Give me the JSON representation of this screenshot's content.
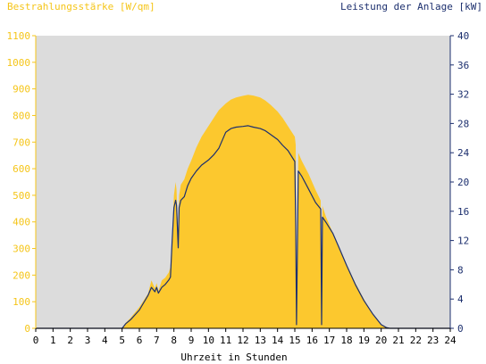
{
  "chart_data": {
    "type": "area",
    "left_title": "Bestrahlungsstärke [W/qm]",
    "right_title": "Leistung der Anlage [kW]",
    "xlabel": "Uhrzeit in Stunden",
    "x_ticks": [
      "0",
      "1",
      "2",
      "3",
      "4",
      "5",
      "6",
      "7",
      "8",
      "9",
      "10",
      "11",
      "12",
      "13",
      "14",
      "15",
      "16",
      "17",
      "18",
      "19",
      "20",
      "21",
      "22",
      "23",
      "24"
    ],
    "xlim": [
      0,
      24
    ],
    "y_left": {
      "ylim": [
        0,
        1100
      ],
      "ticks": [
        "0",
        "100",
        "200",
        "300",
        "400",
        "500",
        "600",
        "700",
        "800",
        "900",
        "1000",
        "1100"
      ]
    },
    "y_right": {
      "ylim": [
        0,
        40
      ],
      "ticks": [
        "0",
        "4",
        "8",
        "12",
        "16",
        "20",
        "24",
        "28",
        "32",
        "36",
        "40"
      ]
    },
    "grid": false,
    "colors": {
      "plot_bg": "#dcdcdc",
      "irradiance_fill": "#fcc82e",
      "power_line": "#1c2f6e",
      "left_axis": "#f5c518",
      "right_axis": "#1c2f6e",
      "frame": "#000000"
    },
    "series": [
      {
        "axis": "left",
        "style": "area",
        "x": [
          0,
          5.0,
          5.2,
          5.5,
          6.0,
          6.5,
          6.7,
          6.9,
          7.0,
          7.1,
          7.3,
          7.5,
          7.7,
          7.8,
          7.9,
          8.0,
          8.1,
          8.15,
          8.25,
          8.3,
          8.4,
          8.6,
          8.8,
          9.0,
          9.3,
          9.6,
          10.0,
          10.3,
          10.6,
          11.0,
          11.3,
          11.6,
          12.0,
          12.3,
          12.6,
          13.0,
          13.3,
          13.6,
          14.0,
          14.3,
          14.6,
          15.0,
          15.05,
          15.1,
          15.2,
          15.4,
          15.8,
          16.2,
          16.5,
          16.55,
          16.6,
          16.8,
          17.2,
          17.6,
          18.0,
          18.5,
          19.0,
          19.5,
          20.0,
          20.3,
          20.5,
          21.0,
          24.0
        ],
        "y": [
          0,
          0,
          20,
          40,
          80,
          130,
          180,
          150,
          170,
          140,
          180,
          190,
          210,
          230,
          350,
          500,
          550,
          520,
          320,
          500,
          540,
          560,
          600,
          630,
          680,
          720,
          760,
          790,
          820,
          845,
          860,
          868,
          874,
          878,
          875,
          868,
          856,
          840,
          815,
          790,
          760,
          720,
          690,
          40,
          660,
          630,
          580,
          520,
          480,
          30,
          460,
          420,
          360,
          300,
          240,
          170,
          110,
          55,
          15,
          5,
          0,
          0,
          0
        ]
      },
      {
        "axis": "right",
        "style": "line",
        "x": [
          0,
          5.0,
          5.2,
          5.5,
          6.0,
          6.5,
          6.7,
          6.9,
          7.0,
          7.1,
          7.3,
          7.5,
          7.7,
          7.8,
          7.9,
          8.0,
          8.1,
          8.15,
          8.25,
          8.3,
          8.4,
          8.6,
          8.8,
          9.0,
          9.3,
          9.6,
          10.0,
          10.3,
          10.6,
          11.0,
          11.3,
          11.6,
          12.0,
          12.3,
          12.6,
          13.0,
          13.3,
          13.6,
          14.0,
          14.3,
          14.6,
          15.0,
          15.05,
          15.1,
          15.2,
          15.4,
          15.8,
          16.2,
          16.5,
          16.55,
          16.6,
          16.8,
          17.2,
          17.6,
          18.0,
          18.5,
          19.0,
          19.5,
          20.0,
          20.3,
          20.5,
          21.0,
          24.0
        ],
        "y": [
          0,
          0,
          0.6,
          1.2,
          2.5,
          4.5,
          5.6,
          5.0,
          5.6,
          4.8,
          5.6,
          6.0,
          6.6,
          7.0,
          12.0,
          16.5,
          17.5,
          16.8,
          11.0,
          16.5,
          17.5,
          18.0,
          19.5,
          20.5,
          21.5,
          22.3,
          23.0,
          23.7,
          24.6,
          26.8,
          27.3,
          27.5,
          27.6,
          27.7,
          27.5,
          27.3,
          27.0,
          26.5,
          25.8,
          25.0,
          24.3,
          22.8,
          14.0,
          0.5,
          21.5,
          20.8,
          19.0,
          17.2,
          16.3,
          0.5,
          15.2,
          14.5,
          13.0,
          10.8,
          8.6,
          6.0,
          3.8,
          2.0,
          0.5,
          0.1,
          0,
          0,
          0
        ]
      }
    ]
  }
}
